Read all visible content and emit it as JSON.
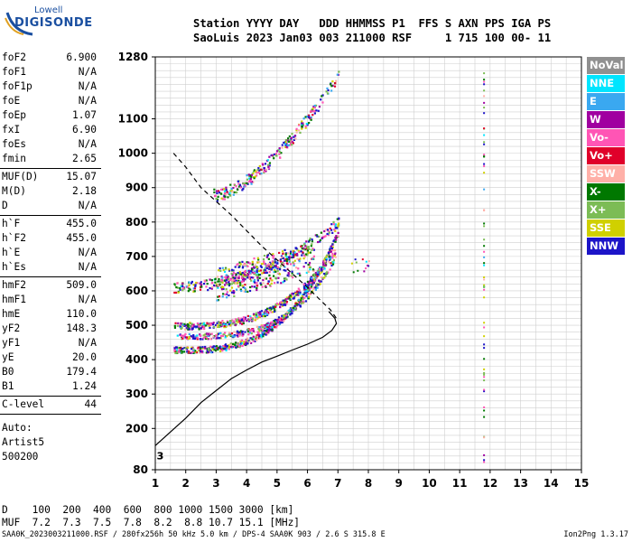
{
  "logo": {
    "line1": "Lowell",
    "line2": "DIGISONDE"
  },
  "header": {
    "row1": "Station YYYY DAY   DDD HHMMSS P1  FFS S AXN PPS IGA PS",
    "row2": "SaoLuis 2023 Jan03 003 211000 RSF     1 715 100 00- 11"
  },
  "params": [
    {
      "label": "foF2",
      "value": "6.900"
    },
    {
      "label": "foF1",
      "value": "N/A"
    },
    {
      "label": "foF1p",
      "value": "N/A"
    },
    {
      "label": "foE",
      "value": "N/A"
    },
    {
      "label": "foEp",
      "value": "1.07"
    },
    {
      "label": "fxI",
      "value": "6.90"
    },
    {
      "label": "foEs",
      "value": "N/A"
    },
    {
      "label": "fmin",
      "value": "2.65"
    },
    {
      "label": "MUF(D)",
      "value": "15.07"
    },
    {
      "label": "M(D)",
      "value": "2.18"
    },
    {
      "label": "D",
      "value": "N/A"
    },
    {
      "label": "h`F",
      "value": "455.0"
    },
    {
      "label": "h`F2",
      "value": "455.0"
    },
    {
      "label": "h`E",
      "value": "N/A"
    },
    {
      "label": "h`Es",
      "value": "N/A"
    },
    {
      "label": "hmF2",
      "value": "509.0"
    },
    {
      "label": "hmF1",
      "value": "N/A"
    },
    {
      "label": "hmE",
      "value": "110.0"
    },
    {
      "label": "yF2",
      "value": "148.3"
    },
    {
      "label": "yF1",
      "value": "N/A"
    },
    {
      "label": "yE",
      "value": "20.0"
    },
    {
      "label": "B0",
      "value": "179.4"
    },
    {
      "label": "B1",
      "value": "1.24"
    },
    {
      "label": "C-level",
      "value": "44"
    }
  ],
  "auto": {
    "line1": "Auto:",
    "line2": "Artist5",
    "line3": "500200"
  },
  "legend": [
    {
      "label": "NoVal",
      "color": "#909090"
    },
    {
      "label": "NNE",
      "color": "#00e5ff"
    },
    {
      "label": "E",
      "color": "#3aa8f0"
    },
    {
      "label": "W",
      "color": "#a000a0"
    },
    {
      "label": "Vo-",
      "color": "#ff55b5"
    },
    {
      "label": "Vo+",
      "color": "#e0002a"
    },
    {
      "label": "SSW",
      "color": "#ffb0a8"
    },
    {
      "label": "X-",
      "color": "#007800"
    },
    {
      "label": "X+",
      "color": "#7cbc55"
    },
    {
      "label": "SSE",
      "color": "#d0d000"
    },
    {
      "label": "NNW",
      "color": "#1c14c8"
    }
  ],
  "bottom_table": {
    "row1": "D    100  200  400  600  800 1000 1500 3000 [km]",
    "row2": "MUF  7.2  7.3  7.5  7.8  8.2  8.8 10.7 15.1 [MHz]"
  },
  "footer": {
    "left": "SAA0K_2023003211000.RSF / 280fx256h 50 kHz 5.0 km / DPS-4 SAA0K 903 / 2.6 S 315.8 E",
    "right": "Ion2Png 1.3.17"
  },
  "chart_data": {
    "type": "scatter",
    "xlim": [
      1,
      15
    ],
    "ylim": [
      80,
      1280
    ],
    "x_ticks": [
      1,
      2,
      3,
      4,
      5,
      6,
      7,
      8,
      9,
      10,
      11,
      12,
      13,
      14,
      15
    ],
    "y_ticks": [
      80,
      200,
      300,
      400,
      500,
      600,
      700,
      800,
      900,
      1000,
      1100,
      1280
    ],
    "grid": true,
    "markers": [
      {
        "label": "3",
        "x": 1.05,
        "y": 110
      },
      {
        "label": "3",
        "x": 1.05,
        "y": 110
      }
    ],
    "profile_curve": [
      [
        1,
        150
      ],
      [
        1.5,
        190
      ],
      [
        2,
        230
      ],
      [
        2.5,
        275
      ],
      [
        3,
        310
      ],
      [
        3.5,
        345
      ],
      [
        4,
        370
      ],
      [
        4.5,
        393
      ],
      [
        5,
        410
      ],
      [
        5.5,
        428
      ],
      [
        6,
        445
      ],
      [
        6.5,
        465
      ],
      [
        6.8,
        485
      ],
      [
        6.95,
        505
      ],
      [
        6.9,
        520
      ],
      [
        6.7,
        540
      ]
    ],
    "dashed_curve": [
      [
        1.6,
        1000
      ],
      [
        2,
        960
      ],
      [
        2.5,
        900
      ],
      [
        3,
        860
      ],
      [
        3.5,
        820
      ],
      [
        4,
        775
      ],
      [
        4.5,
        730
      ],
      [
        5,
        690
      ],
      [
        5.5,
        650
      ],
      [
        6,
        610
      ],
      [
        6.4,
        575
      ],
      [
        6.75,
        545
      ],
      [
        6.95,
        520
      ]
    ],
    "traces": [
      {
        "name": "O-trace upper",
        "from": [
          1.6,
          430
        ],
        "to": [
          7.0,
          775
        ]
      },
      {
        "name": "O-trace lower",
        "from": [
          1.6,
          500
        ],
        "to": [
          6.9,
          720
        ]
      },
      {
        "name": "X-trace",
        "from": [
          1.7,
          470
        ],
        "to": [
          7.0,
          700
        ]
      },
      {
        "name": "spread F",
        "from": [
          1.6,
          615
        ],
        "to": [
          7.0,
          800
        ]
      },
      {
        "name": "multi-hop",
        "from": [
          2.9,
          880
        ],
        "to": [
          7.0,
          1230
        ]
      }
    ],
    "vertical_column": {
      "x": 11.8,
      "ymin": 100,
      "ymax": 1280
    }
  }
}
